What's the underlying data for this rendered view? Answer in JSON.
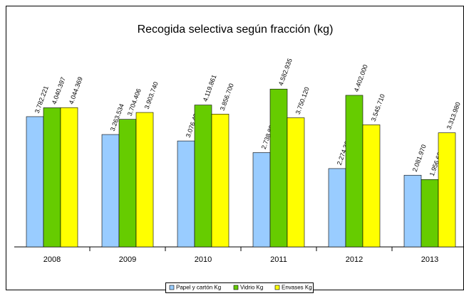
{
  "chart_data": {
    "type": "bar",
    "title": "Recogida selectiva según fracción (kg)",
    "categories": [
      "2008",
      "2009",
      "2010",
      "2011",
      "2012",
      "2013"
    ],
    "series": [
      {
        "name": "Papel y cartón Kg",
        "color": "#99ccff",
        "values": [
          3782221,
          3263534,
          3076491,
          2738890,
          2274368,
          2081970
        ],
        "value_labels": [
          "3.782.221",
          "3.263.534",
          "3.076.491",
          "2.738.890",
          "2.274.368",
          "2.081.970"
        ]
      },
      {
        "name": "Vidrio Kg",
        "color": "#66cc00",
        "values": [
          4040397,
          3704406,
          4119861,
          4582935,
          4402000,
          1956609
        ],
        "value_labels": [
          "4.040.397",
          "3.704.406",
          "4.119.861",
          "4.582.935",
          "4.402.000",
          "1.956.609"
        ]
      },
      {
        "name": "Envases Kg",
        "color": "#ffff00",
        "values": [
          4044369,
          3903740,
          3856700,
          3750120,
          3545710,
          3313980
        ],
        "value_labels": [
          "4.044.369",
          "3.903.740",
          "3.856.700",
          "3.750.120",
          "3.545.710",
          "3.313.980"
        ]
      }
    ],
    "ylim": [
      0,
      5000000
    ],
    "legend": "bottom"
  }
}
